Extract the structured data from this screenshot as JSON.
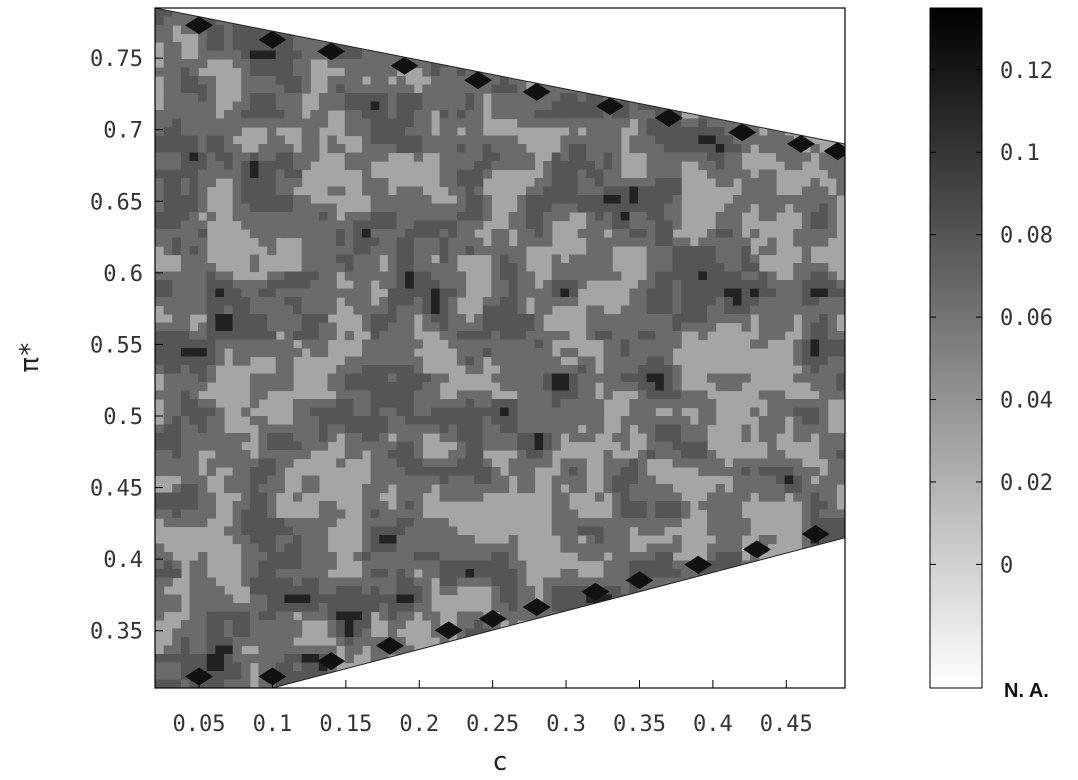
{
  "chart_data": {
    "type": "heatmap",
    "title": "",
    "xlabel": "c",
    "ylabel": "π*",
    "xlim": [
      0.02,
      0.49
    ],
    "ylim": [
      0.31,
      0.785
    ],
    "x_ticks": [
      0.05,
      0.1,
      0.15,
      0.2,
      0.25,
      0.3,
      0.35,
      0.4,
      0.45
    ],
    "x_tick_labels": [
      "0.05",
      "0.1",
      "0.15",
      "0.2",
      "0.25",
      "0.3",
      "0.35",
      "0.4",
      "0.45"
    ],
    "y_ticks": [
      0.35,
      0.4,
      0.45,
      0.5,
      0.55,
      0.6,
      0.65,
      0.7,
      0.75
    ],
    "y_tick_labels": [
      "0.35",
      "0.4",
      "0.45",
      "0.5",
      "0.55",
      "0.6",
      "0.65",
      "0.7",
      "0.75"
    ],
    "colorbar": {
      "range": [
        -0.03,
        0.135
      ],
      "ticks": [
        0,
        0.02,
        0.04,
        0.06,
        0.08,
        0.1,
        0.12
      ],
      "tick_labels": [
        "0",
        "0.02",
        "0.04",
        "0.06",
        "0.08",
        "0.1",
        "0.12"
      ],
      "na_label": "N. A.",
      "color_low": "#ffffff",
      "color_high": "#000000"
    },
    "region_boundary": {
      "upper": [
        [
          0.02,
          0.785
        ],
        [
          0.49,
          0.69
        ]
      ],
      "lower": [
        [
          0.02,
          0.31
        ],
        [
          0.1,
          0.31
        ],
        [
          0.49,
          0.415
        ]
      ]
    },
    "contour_levels": [
      {
        "value": 0.025,
        "color": "#a5a5a5"
      },
      {
        "value": 0.055,
        "color": "#6b6b6b"
      },
      {
        "value": 0.085,
        "color": "#555555"
      },
      {
        "value": 0.115,
        "color": "#222222"
      }
    ],
    "grid": false,
    "legend": "none"
  }
}
